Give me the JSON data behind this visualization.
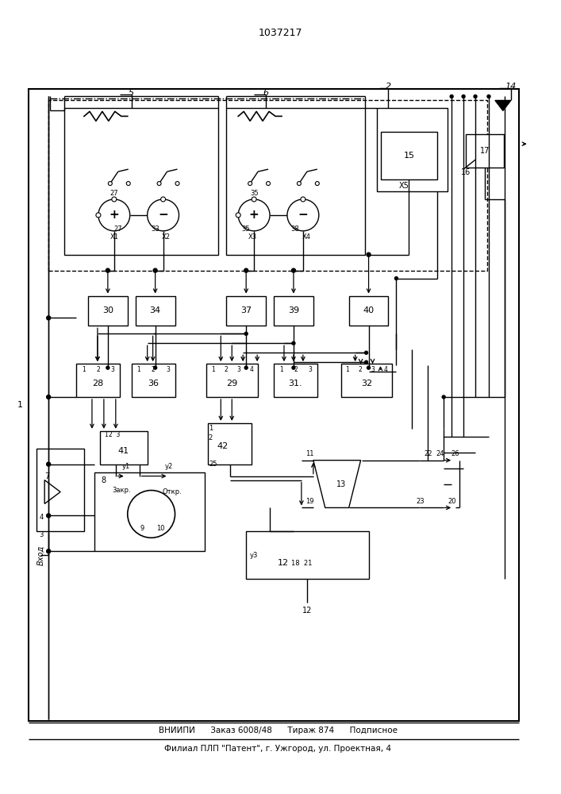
{
  "title": "1037217",
  "footer_line1": "ВНИИПИ      Заказ 6008/48      Тираж 874      Подписное",
  "footer_line2": "Филиал ПЛП \"Патент\", г. Ужгород, ул. Проектная, 4",
  "bg_color": "#ffffff",
  "lc": "#000000",
  "figsize": [
    7.07,
    10.0
  ],
  "dpi": 100
}
